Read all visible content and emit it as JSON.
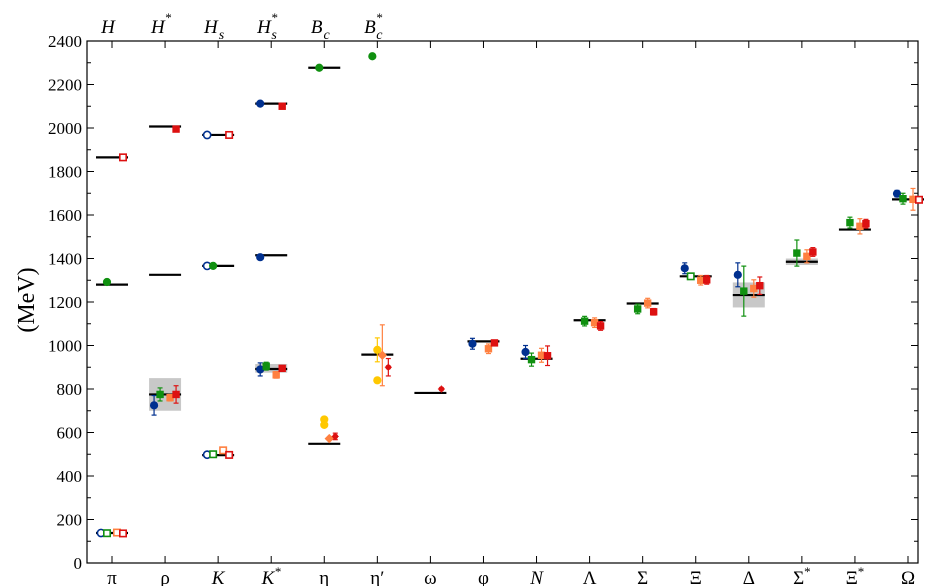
{
  "chart_data": {
    "type": "scatter",
    "title": "",
    "ylabel": "(MeV)",
    "ylim": [
      0,
      2400
    ],
    "yticks": [
      0,
      200,
      400,
      600,
      800,
      1000,
      1200,
      1400,
      1600,
      1800,
      2000,
      2200,
      2400
    ],
    "grid": false,
    "legend": "none",
    "categories": [
      {
        "label": "π",
        "italic": false
      },
      {
        "label": "ρ",
        "italic": false
      },
      {
        "label": "K",
        "italic": true
      },
      {
        "label": "K*",
        "italic": true
      },
      {
        "label": "η",
        "italic": false
      },
      {
        "label": "η′",
        "italic": false
      },
      {
        "label": "ω",
        "italic": false
      },
      {
        "label": "φ",
        "italic": false
      },
      {
        "label": "N",
        "italic": true
      },
      {
        "label": "Λ",
        "italic": false
      },
      {
        "label": "Σ",
        "italic": false
      },
      {
        "label": "Ξ",
        "italic": false
      },
      {
        "label": "Δ",
        "italic": false
      },
      {
        "label": "Σ*",
        "italic": false
      },
      {
        "label": "Ξ*",
        "italic": false
      },
      {
        "label": "Ω",
        "italic": false
      }
    ],
    "top_categories": [
      {
        "base": "H",
        "sup": "",
        "sub": ""
      },
      {
        "base": "H",
        "sup": "*",
        "sub": ""
      },
      {
        "base": "H",
        "sup": "",
        "sub": "s"
      },
      {
        "base": "H",
        "sup": "*",
        "sub": "s"
      },
      {
        "base": "B",
        "sup": "",
        "sub": "c"
      },
      {
        "base": "B",
        "sup": "*",
        "sub": "c"
      }
    ],
    "experiment": [
      {
        "x": 0,
        "value": 1865
      },
      {
        "x": 0,
        "value": 1280
      },
      {
        "x": 0,
        "value": 138
      },
      {
        "x": 1,
        "value": 2007
      },
      {
        "x": 1,
        "value": 1325
      },
      {
        "x": 1,
        "value": 775
      },
      {
        "x": 2,
        "value": 1968
      },
      {
        "x": 2,
        "value": 1366
      },
      {
        "x": 2,
        "value": 496
      },
      {
        "x": 3,
        "value": 2112
      },
      {
        "x": 3,
        "value": 1415
      },
      {
        "x": 3,
        "value": 892
      },
      {
        "x": 4,
        "value": 2277
      },
      {
        "x": 4,
        "value": 548
      },
      {
        "x": 5,
        "value": 958
      },
      {
        "x": 6,
        "value": 782
      },
      {
        "x": 7,
        "value": 1019
      },
      {
        "x": 8,
        "value": 939
      },
      {
        "x": 9,
        "value": 1116
      },
      {
        "x": 10,
        "value": 1193
      },
      {
        "x": 11,
        "value": 1318
      },
      {
        "x": 12,
        "value": 1232
      },
      {
        "x": 13,
        "value": 1385
      },
      {
        "x": 14,
        "value": 1533
      },
      {
        "x": 15,
        "value": 1672
      }
    ],
    "bands": [
      {
        "x": 1,
        "low": 700,
        "high": 850
      },
      {
        "x": 3,
        "low": 875,
        "high": 915
      },
      {
        "x": 12,
        "low": 1175,
        "high": 1290
      },
      {
        "x": 13,
        "low": 1370,
        "high": 1400
      }
    ],
    "series": [
      {
        "color": "#00308f",
        "marker": "circle",
        "points": [
          {
            "x": 0,
            "value": 138,
            "open": true
          },
          {
            "x": 1,
            "value": 725,
            "err": 45
          },
          {
            "x": 2,
            "value": 1968,
            "open": true
          },
          {
            "x": 2,
            "value": 1366,
            "open": true
          },
          {
            "x": 2,
            "value": 498,
            "open": true
          },
          {
            "x": 3,
            "value": 2112
          },
          {
            "x": 3,
            "value": 1406
          },
          {
            "x": 3,
            "value": 890,
            "err": 30
          },
          {
            "x": 7,
            "value": 1008,
            "err": 25
          },
          {
            "x": 8,
            "value": 970,
            "err": 30
          },
          {
            "x": 11,
            "value": 1355,
            "err": 25
          },
          {
            "x": 12,
            "value": 1325,
            "err": 55
          },
          {
            "x": 15,
            "value": 1698,
            "err": 15
          }
        ]
      },
      {
        "color": "#109010",
        "marker": "square",
        "points": [
          {
            "x": 0,
            "value": 1292,
            "shape": "circle"
          },
          {
            "x": 0,
            "value": 137,
            "open": true
          },
          {
            "x": 1,
            "value": 775,
            "err": 30
          },
          {
            "x": 2,
            "value": 1366,
            "shape": "circle"
          },
          {
            "x": 2,
            "value": 500,
            "open": true
          },
          {
            "x": 3,
            "value": 905,
            "err": 18
          },
          {
            "x": 4,
            "value": 2277,
            "shape": "circle"
          },
          {
            "x": 5,
            "value": 2330,
            "shape": "circle"
          },
          {
            "x": 8,
            "value": 935,
            "err": 30
          },
          {
            "x": 9,
            "value": 1112,
            "err": 22
          },
          {
            "x": 10,
            "value": 1168,
            "err": 22
          },
          {
            "x": 11,
            "value": 1318,
            "open": true
          },
          {
            "x": 12,
            "value": 1250,
            "err": 115
          },
          {
            "x": 13,
            "value": 1425,
            "err": 60
          },
          {
            "x": 14,
            "value": 1565,
            "err": 25
          },
          {
            "x": 15,
            "value": 1675,
            "err": 25
          }
        ]
      },
      {
        "color": "#ffc800",
        "marker": "circle",
        "points": [
          {
            "x": 4,
            "value": 660
          },
          {
            "x": 4,
            "value": 635
          },
          {
            "x": 5,
            "value": 980,
            "err": 55
          },
          {
            "x": 5,
            "value": 840
          }
        ]
      },
      {
        "color": "#ff8040",
        "marker": "diamond",
        "points": [
          {
            "x": 0,
            "value": 140,
            "shape": "square",
            "open": true
          },
          {
            "x": 1,
            "value": 760,
            "shape": "square",
            "err": 15
          },
          {
            "x": 2,
            "value": 518,
            "shape": "square",
            "open": true
          },
          {
            "x": 3,
            "value": 865,
            "shape": "square",
            "err": 15
          },
          {
            "x": 4,
            "value": 572
          },
          {
            "x": 5,
            "value": 955,
            "err": 140
          },
          {
            "x": 7,
            "value": 985,
            "shape": "square",
            "err": 22
          },
          {
            "x": 8,
            "value": 955,
            "shape": "square",
            "err": 32
          },
          {
            "x": 9,
            "value": 1105,
            "shape": "square",
            "err": 22
          },
          {
            "x": 10,
            "value": 1195,
            "shape": "square",
            "err": 22
          },
          {
            "x": 11,
            "value": 1300,
            "shape": "square",
            "err": 22
          },
          {
            "x": 12,
            "value": 1262,
            "shape": "square",
            "err": 40
          },
          {
            "x": 13,
            "value": 1410,
            "shape": "square",
            "err": 30
          },
          {
            "x": 14,
            "value": 1548,
            "shape": "square",
            "err": 35
          },
          {
            "x": 15,
            "value": 1672,
            "shape": "square",
            "err": 50
          }
        ]
      },
      {
        "color": "#dd1111",
        "marker": "square",
        "points": [
          {
            "x": 0,
            "value": 1865,
            "open": true
          },
          {
            "x": 0,
            "value": 136,
            "open": true
          },
          {
            "x": 1,
            "value": 1995
          },
          {
            "x": 1,
            "value": 775,
            "err": 40
          },
          {
            "x": 2,
            "value": 1968,
            "open": true
          },
          {
            "x": 2,
            "value": 497,
            "open": true
          },
          {
            "x": 3,
            "value": 2100
          },
          {
            "x": 3,
            "value": 895,
            "err": 12
          },
          {
            "x": 4,
            "value": 582,
            "shape": "star",
            "err": 15
          },
          {
            "x": 5,
            "value": 900,
            "shape": "star",
            "err": 40
          },
          {
            "x": 6,
            "value": 800,
            "shape": "star"
          },
          {
            "x": 7,
            "value": 1012,
            "err": 12
          },
          {
            "x": 8,
            "value": 953,
            "err": 45
          },
          {
            "x": 9,
            "value": 1090,
            "err": 20
          },
          {
            "x": 10,
            "value": 1155,
            "err": 15
          },
          {
            "x": 11,
            "value": 1302,
            "err": 20
          },
          {
            "x": 12,
            "value": 1275,
            "err": 40
          },
          {
            "x": 13,
            "value": 1430,
            "err": 20
          },
          {
            "x": 14,
            "value": 1560,
            "err": 20
          },
          {
            "x": 15,
            "value": 1670,
            "open": true
          }
        ]
      }
    ]
  }
}
